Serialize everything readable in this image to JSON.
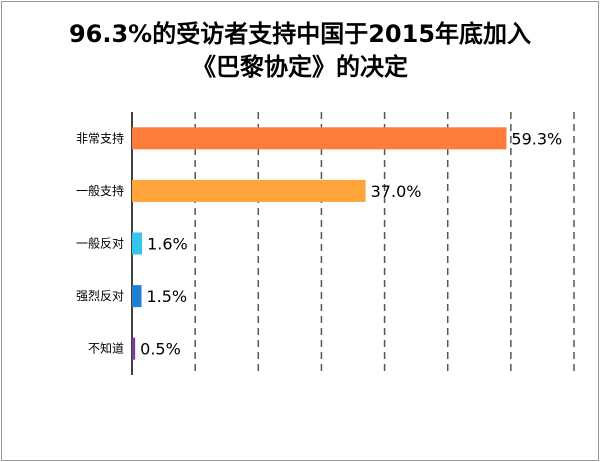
{
  "chart_data": {
    "type": "bar",
    "orientation": "horizontal",
    "title_lines": [
      "96.3%的受访者支持中国于2015年底加入",
      "《巴黎协定》的决定"
    ],
    "categories": [
      "非常支持",
      "一般支持",
      "一般反对",
      "强烈反对",
      "不知道"
    ],
    "values": [
      59.3,
      37.0,
      1.6,
      1.5,
      0.5
    ],
    "value_labels": [
      "59.3%",
      "37.0%",
      "1.6%",
      "1.5%",
      "0.5%"
    ],
    "colors": [
      "#FF7B3A",
      "#FFA43B",
      "#35C4EE",
      "#1E7FD4",
      "#7A3E98"
    ],
    "xlim": [
      0,
      70
    ],
    "grid": true,
    "legend": "none"
  }
}
